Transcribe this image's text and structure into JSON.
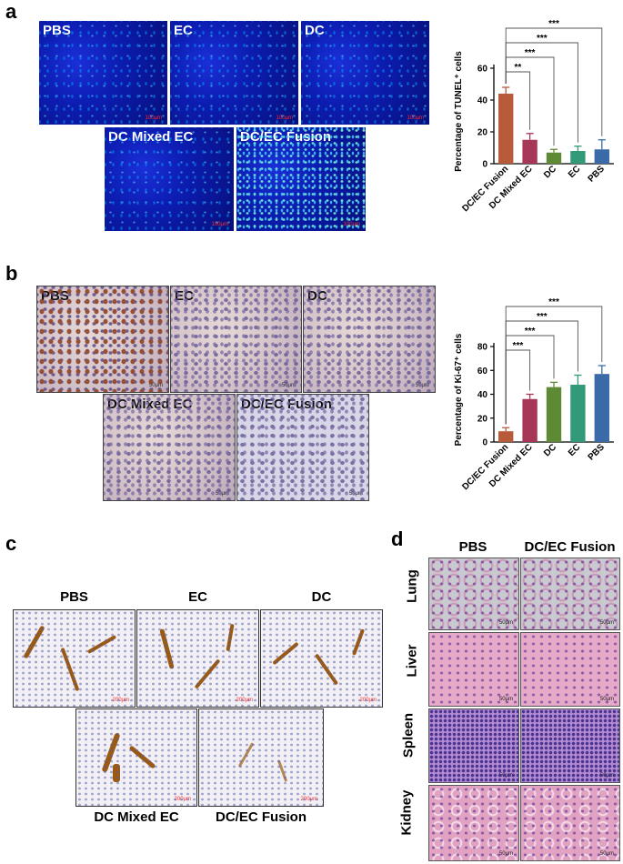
{
  "panels": {
    "a": {
      "letter": "a",
      "images": {
        "pbs": "PBS",
        "ec": "EC",
        "dc": "DC",
        "mixed": "DC Mixed EC",
        "fusion": "DC/EC Fusion"
      },
      "scale_bar": "100μm"
    },
    "b": {
      "letter": "b",
      "images": {
        "pbs": "PBS",
        "ec": "EC",
        "dc": "DC",
        "mixed": "DC Mixed EC",
        "fusion": "DC/EC Fusion"
      },
      "scale_bar": "50μm"
    },
    "c": {
      "letter": "c",
      "images": {
        "pbs": "PBS",
        "ec": "EC",
        "dc": "DC",
        "mixed": "DC Mixed EC",
        "fusion": "DC/EC Fusion"
      },
      "scale_bar": "200μm"
    },
    "d": {
      "letter": "d",
      "columns": {
        "pbs": "PBS",
        "fusion": "DC/EC Fusion"
      },
      "organs": {
        "lung": "Lung",
        "liver": "Liver",
        "spleen": "Spleen",
        "kidney": "Kidney"
      },
      "scale_bar": "50μm"
    }
  },
  "chart_data": [
    {
      "type": "bar",
      "title": "",
      "ylabel": "Percentage of TUNEL⁺ cells",
      "ylim": [
        0,
        60
      ],
      "yticks": [
        "0",
        "20",
        "40",
        "60"
      ],
      "categories": [
        "DC/EC Fusion",
        "DC Mixed EC",
        "DC",
        "EC",
        "PBS"
      ],
      "values": [
        44,
        15,
        7,
        8,
        9
      ],
      "errors": [
        4,
        4,
        2,
        3,
        6
      ],
      "colors": [
        "#b85b3b",
        "#a63756",
        "#5f8a35",
        "#329a78",
        "#3a6ba8"
      ],
      "significance": [
        {
          "from": 0,
          "to": 1,
          "label": "**"
        },
        {
          "from": 0,
          "to": 2,
          "label": "***"
        },
        {
          "from": 0,
          "to": 3,
          "label": "***"
        },
        {
          "from": 0,
          "to": 4,
          "label": "***"
        }
      ]
    },
    {
      "type": "bar",
      "title": "",
      "ylabel": "Percentage of Ki-67⁺ cells",
      "ylim": [
        0,
        80
      ],
      "yticks": [
        "0",
        "20",
        "40",
        "60",
        "80"
      ],
      "categories": [
        "DC/EC Fusion",
        "DC Mixed EC",
        "DC",
        "EC",
        "PBS"
      ],
      "values": [
        9,
        36,
        46,
        48,
        57
      ],
      "errors": [
        3,
        4,
        4,
        8,
        7
      ],
      "colors": [
        "#b85b3b",
        "#a63756",
        "#5f8a35",
        "#329a78",
        "#3a6ba8"
      ],
      "significance": [
        {
          "from": 0,
          "to": 1,
          "label": "***"
        },
        {
          "from": 0,
          "to": 2,
          "label": "***"
        },
        {
          "from": 0,
          "to": 3,
          "label": "***"
        },
        {
          "from": 0,
          "to": 4,
          "label": "***"
        }
      ]
    }
  ]
}
